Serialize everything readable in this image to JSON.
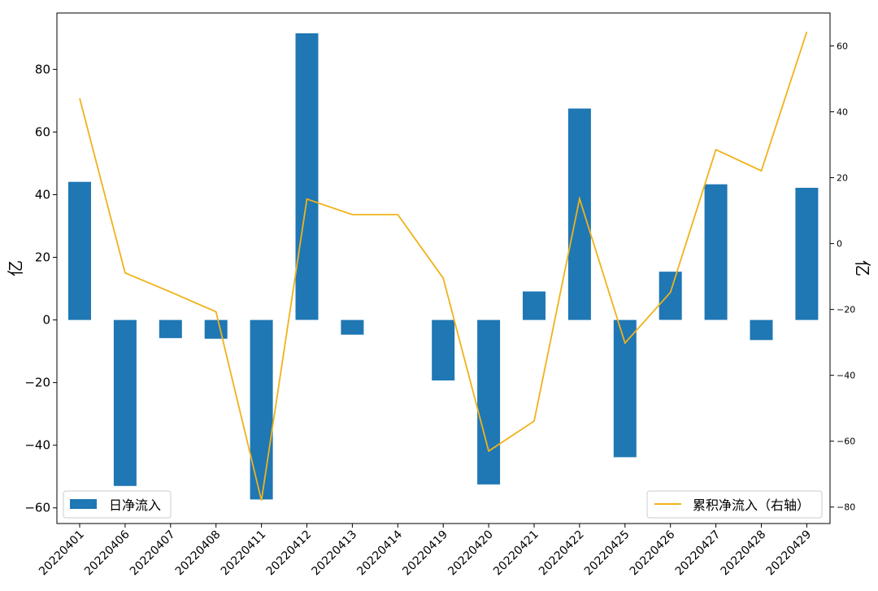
{
  "chart_data": {
    "type": "bar+line",
    "categories": [
      "20220401",
      "20220406",
      "20220407",
      "20220408",
      "20220411",
      "20220412",
      "20220413",
      "20220414",
      "20220419",
      "20220420",
      "20220421",
      "20220422",
      "20220425",
      "20220426",
      "20220427",
      "20220428",
      "20220429"
    ],
    "series": [
      {
        "name": "日净流入",
        "type": "bar",
        "axis": "left",
        "color": "#1f77b4",
        "values": [
          44.1,
          -53.0,
          -5.8,
          -6.0,
          -57.3,
          91.5,
          -4.7,
          0.0,
          -19.3,
          -52.5,
          9.1,
          67.5,
          -43.8,
          15.4,
          43.3,
          -6.4,
          42.2
        ]
      },
      {
        "name": "累积净流入（右轴）",
        "type": "line",
        "axis": "right",
        "color": "#f0b21a",
        "values": [
          44.1,
          -8.9,
          -14.7,
          -20.7,
          -78.0,
          13.5,
          8.8,
          8.8,
          -10.5,
          -63.0,
          -53.9,
          13.6,
          -30.2,
          -14.8,
          28.5,
          22.1,
          64.3
        ]
      }
    ],
    "ylabel": "亿",
    "ylabel_right": "亿",
    "ylim": [
      -65,
      98
    ],
    "ylim_right": [
      -85,
      70
    ],
    "yticks": [
      -60,
      -40,
      -20,
      0,
      20,
      40,
      60,
      80
    ],
    "yticks_right": [
      -80,
      -60,
      -40,
      -20,
      0,
      20,
      40,
      60
    ],
    "legend": [
      {
        "label": "日净流入",
        "placement": "lower-left"
      },
      {
        "label": "累积净流入（右轴）",
        "placement": "lower-right"
      }
    ],
    "grid": false
  }
}
